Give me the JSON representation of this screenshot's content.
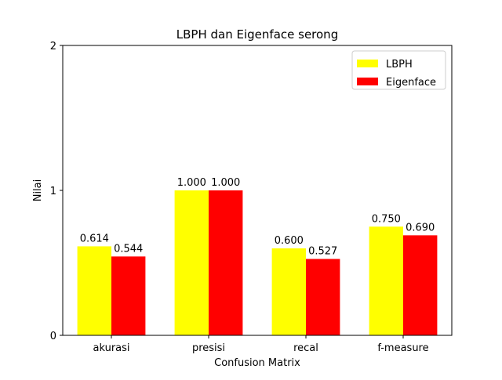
{
  "chart_data": {
    "type": "bar",
    "title": "LBPH dan Eigenface serong",
    "xlabel": "Confusion Matrix",
    "ylabel": "Nilai",
    "categories": [
      "akurasi",
      "presisi",
      "recal",
      "f-measure"
    ],
    "series": [
      {
        "name": "LBPH",
        "color": "#ffff00",
        "values": [
          0.614,
          1.0,
          0.6,
          0.75
        ],
        "labels": [
          "0.614",
          "1.000",
          "0.600",
          "0.750"
        ]
      },
      {
        "name": "Eigenface",
        "color": "#ff0000",
        "values": [
          0.544,
          1.0,
          0.527,
          0.69
        ],
        "labels": [
          "0.544",
          "1.000",
          "0.527",
          "0.690"
        ]
      }
    ],
    "ylim": [
      0,
      2
    ],
    "yticks": [
      0,
      1,
      2
    ],
    "ytick_labels": [
      "0",
      "1",
      "2"
    ],
    "legend_position": "upper right",
    "grid": false
  }
}
